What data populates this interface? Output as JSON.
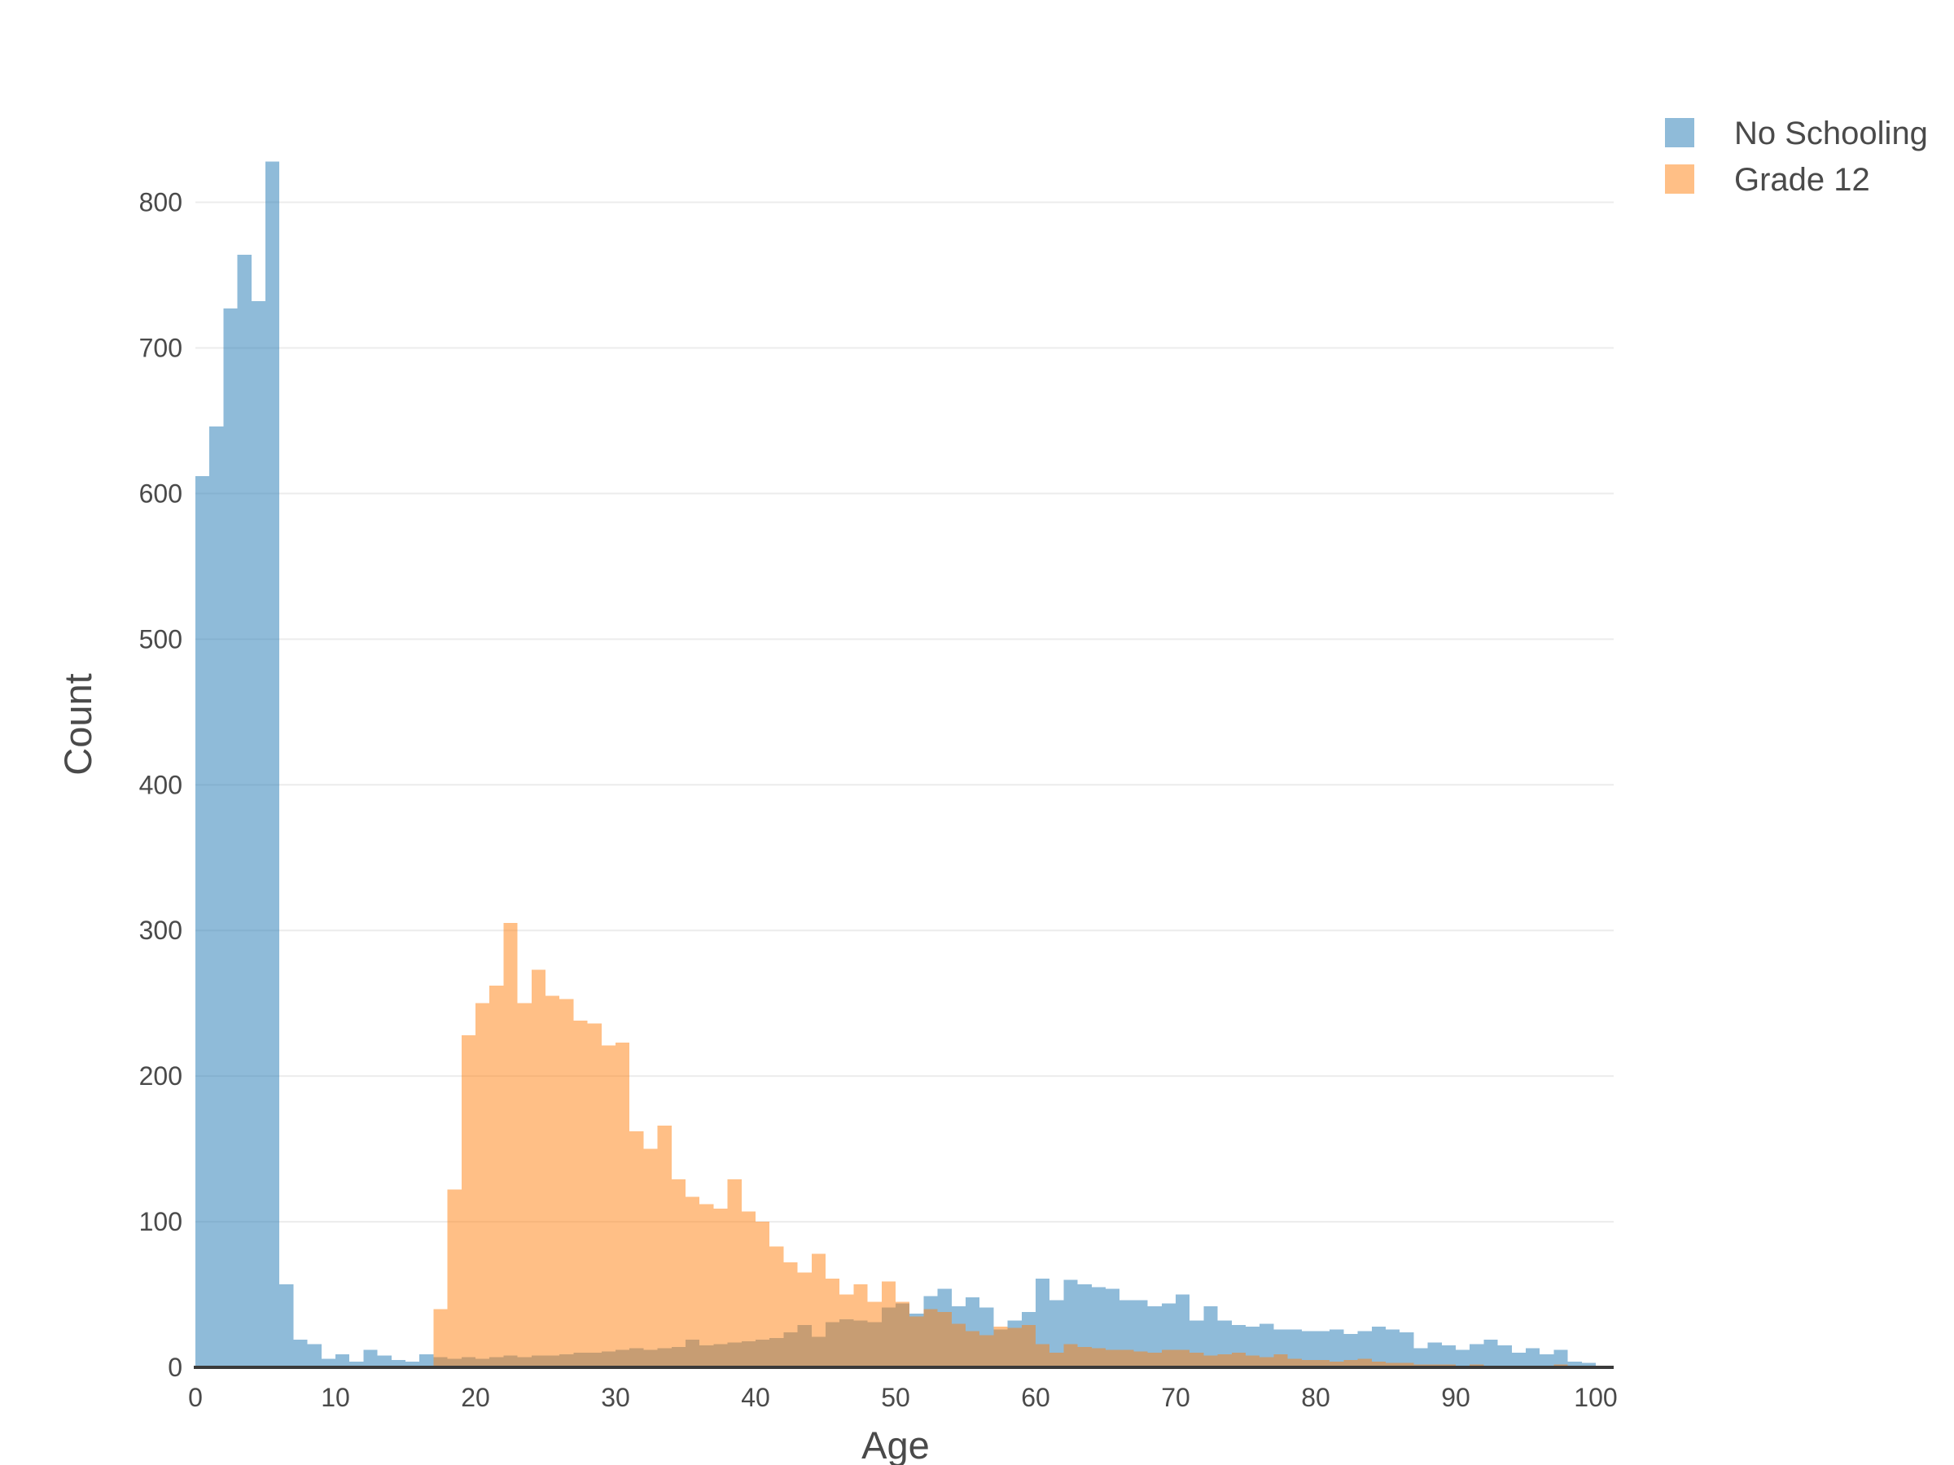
{
  "figure": {
    "background": "#ffffff",
    "colors": {
      "axis_line": "#3a3a3a",
      "grid_line": "#ececec",
      "text": "#4a4a4a"
    }
  },
  "chart_data": {
    "type": "bar",
    "variant": "overlaid histogram, bin width = 1 year, opacity 0.5",
    "title": "",
    "xlabel": "Age",
    "ylabel": "Count",
    "xlim": [
      0,
      100
    ],
    "ylim": [
      0,
      883
    ],
    "xticks": [
      0,
      10,
      20,
      30,
      40,
      50,
      60,
      70,
      80,
      90,
      100
    ],
    "yticks": [
      0,
      100,
      200,
      300,
      400,
      500,
      600,
      700,
      800
    ],
    "grid": "horizontal only",
    "legend": {
      "position": "top-right",
      "items": [
        "No Schooling",
        "Grade 12"
      ]
    },
    "bin_start": 0,
    "bin_width": 1,
    "series": [
      {
        "name": "No Schooling",
        "fill": "rgba(31,119,180,0.5)",
        "legend_swatch": "#8FBBD9",
        "values": [
          612,
          646,
          727,
          764,
          732,
          828,
          57,
          19,
          16,
          6,
          9,
          4,
          12,
          8,
          5,
          4,
          9,
          7,
          6,
          7,
          6,
          7,
          8,
          7,
          8,
          8,
          9,
          10,
          10,
          11,
          12,
          13,
          12,
          13,
          14,
          19,
          15,
          16,
          17,
          18,
          19,
          20,
          24,
          29,
          21,
          31,
          33,
          32,
          31,
          41,
          44,
          37,
          49,
          54,
          42,
          48,
          41,
          26,
          32,
          38,
          61,
          46,
          60,
          57,
          55,
          54,
          46,
          46,
          42,
          44,
          50,
          32,
          42,
          32,
          29,
          28,
          30,
          26,
          26,
          25,
          25,
          26,
          23,
          25,
          28,
          26,
          24,
          13,
          17,
          15,
          12,
          16,
          19,
          15,
          10,
          13,
          9,
          12,
          4,
          3
        ]
      },
      {
        "name": "Grade 12",
        "fill": "rgba(255,127,14,0.5)",
        "legend_swatch": "#FFBF86",
        "values": [
          0,
          0,
          0,
          0,
          0,
          0,
          0,
          0,
          0,
          0,
          0,
          0,
          0,
          0,
          0,
          0,
          0,
          40,
          122,
          228,
          250,
          262,
          305,
          250,
          273,
          255,
          253,
          238,
          236,
          221,
          223,
          162,
          150,
          166,
          129,
          117,
          112,
          109,
          129,
          107,
          100,
          83,
          72,
          65,
          78,
          61,
          50,
          57,
          45,
          59,
          45,
          35,
          40,
          38,
          30,
          25,
          22,
          28,
          27,
          29,
          16,
          10,
          16,
          14,
          13,
          12,
          12,
          11,
          10,
          12,
          12,
          10,
          8,
          9,
          10,
          8,
          7,
          9,
          6,
          5,
          5,
          4,
          5,
          6,
          4,
          3,
          3,
          2,
          2,
          2,
          1,
          2,
          1,
          1,
          1,
          1,
          1,
          2,
          1,
          1
        ]
      }
    ]
  }
}
